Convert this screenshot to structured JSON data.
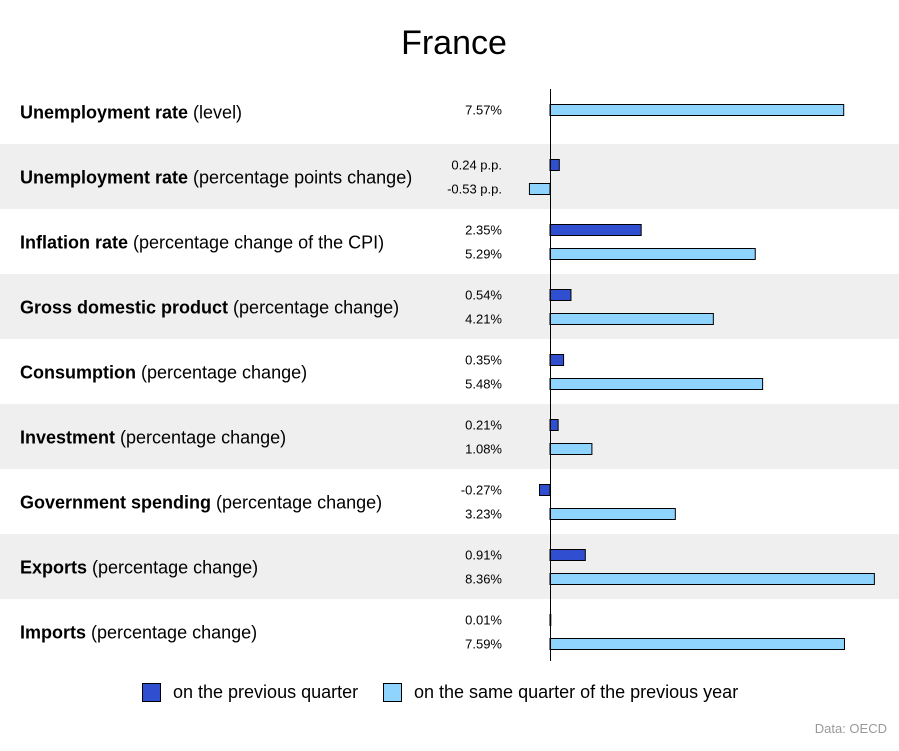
{
  "chart_data": {
    "type": "bar",
    "orientation": "horizontal",
    "title": "France",
    "source": "Data: OECD",
    "grid": false,
    "legend_position": "bottom",
    "series": [
      {
        "name": "on the previous quarter",
        "color": "#2f4fd0"
      },
      {
        "name": "on the same quarter of the previous year",
        "color": "#8fd3ff"
      }
    ],
    "categories": [
      {
        "bold": "Unemployment rate",
        "rest": "(level)",
        "values": [
          null,
          7.57
        ],
        "labels": [
          "",
          "7.57%"
        ]
      },
      {
        "bold": "Unemployment rate",
        "rest": "(percentage points change)",
        "values": [
          0.24,
          -0.53
        ],
        "labels": [
          "0.24 p.p.",
          "-0.53 p.p."
        ]
      },
      {
        "bold": "Inflation rate",
        "rest": "(percentage change of the CPI)",
        "values": [
          2.35,
          5.29
        ],
        "labels": [
          "2.35%",
          "5.29%"
        ]
      },
      {
        "bold": "Gross domestic product",
        "rest": "(percentage change)",
        "values": [
          0.54,
          4.21
        ],
        "labels": [
          "0.54%",
          "4.21%"
        ]
      },
      {
        "bold": "Consumption",
        "rest": "(percentage change)",
        "values": [
          0.35,
          5.48
        ],
        "labels": [
          "0.35%",
          "5.48%"
        ]
      },
      {
        "bold": "Investment",
        "rest": "(percentage change)",
        "values": [
          0.21,
          1.08
        ],
        "labels": [
          "0.21%",
          "1.08%"
        ]
      },
      {
        "bold": "Government spending",
        "rest": "(percentage change)",
        "values": [
          -0.27,
          3.23
        ],
        "labels": [
          "-0.27%",
          "3.23%"
        ]
      },
      {
        "bold": "Exports",
        "rest": "(percentage change)",
        "values": [
          0.91,
          8.36
        ],
        "labels": [
          "0.91%",
          "8.36%"
        ]
      },
      {
        "bold": "Imports",
        "rest": "(percentage change)",
        "values": [
          0.01,
          7.59
        ],
        "labels": [
          "0.01%",
          "7.59%"
        ]
      }
    ],
    "xlim": [
      -0.55,
      8.4
    ]
  }
}
